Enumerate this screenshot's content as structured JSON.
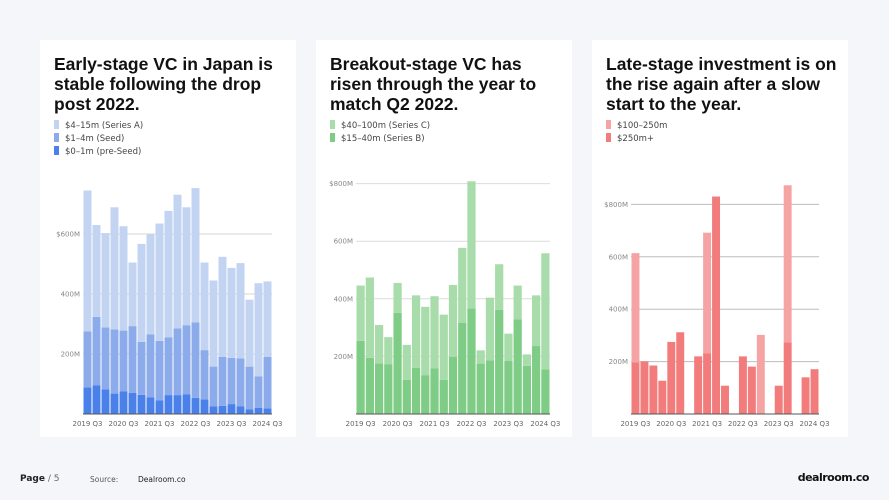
{
  "footer": {
    "page_label": "Page",
    "page_number": "/ 5",
    "source_label": "Source:",
    "source_value": "Dealroom.co",
    "logo": "dealroom.co"
  },
  "cards": [
    {
      "title": "Early-stage VC in Japan is stable following the drop post 2022.",
      "legend": [
        "$4–15m (Series A)",
        "$1–4m (Seed)",
        "$0–1m (pre-Seed)"
      ]
    },
    {
      "title": "Breakout-stage VC has risen through the year to match Q2 2022.",
      "legend": [
        "$40–100m (Series C)",
        "$15–40m (Series B)"
      ]
    },
    {
      "title": "Late-stage investment is on the rise again after a slow start to the year.",
      "legend": [
        "$100–250m",
        "$250m+"
      ]
    }
  ],
  "chart_data": [
    {
      "type": "bar",
      "stacked": true,
      "unit": "USD M",
      "categories": [
        "2019 Q3",
        "2019 Q4",
        "2020 Q1",
        "2020 Q2",
        "2020 Q3",
        "2020 Q4",
        "2021 Q1",
        "2021 Q2",
        "2021 Q3",
        "2021 Q4",
        "2022 Q1",
        "2022 Q2",
        "2022 Q3",
        "2022 Q4",
        "2023 Q1",
        "2023 Q2",
        "2023 Q3",
        "2023 Q4",
        "2024 Q1",
        "2024 Q2",
        "2024 Q3"
      ],
      "x_tick_labels": [
        "2019 Q3",
        "2020 Q3",
        "2021 Q3",
        "2022 Q3",
        "2023 Q3",
        "2024 Q3"
      ],
      "y_tick_labels": [
        "200M",
        "400M",
        "$600M"
      ],
      "y_ticks": [
        200,
        400,
        600
      ],
      "ylim": [
        0,
        800
      ],
      "grid": true,
      "series": [
        {
          "name": "$0–1m (pre-Seed)",
          "color": "#4a80ea",
          "values": [
            89,
            95,
            82,
            68,
            75,
            71,
            64,
            55,
            46,
            63,
            63,
            65,
            54,
            49,
            26,
            27,
            33,
            26,
            16,
            21,
            19
          ]
        },
        {
          "name": "$1–4m (Seed)",
          "color": "#8cabea",
          "values": [
            186,
            229,
            207,
            214,
            203,
            222,
            176,
            210,
            198,
            193,
            222,
            231,
            251,
            164,
            132,
            163,
            154,
            159,
            142,
            104,
            171
          ]
        },
        {
          "name": "$4–15m (Series A)",
          "color": "#c3d4f2",
          "values": [
            470,
            306,
            314,
            407,
            348,
            212,
            327,
            334,
            391,
            421,
            446,
            393,
            448,
            292,
            287,
            334,
            300,
            318,
            223,
            311,
            252
          ]
        }
      ]
    },
    {
      "type": "bar",
      "stacked": true,
      "unit": "USD M",
      "categories": [
        "2019 Q3",
        "2019 Q4",
        "2020 Q1",
        "2020 Q2",
        "2020 Q3",
        "2020 Q4",
        "2021 Q1",
        "2021 Q2",
        "2021 Q3",
        "2021 Q4",
        "2022 Q1",
        "2022 Q2",
        "2022 Q3",
        "2022 Q4",
        "2023 Q1",
        "2023 Q2",
        "2023 Q3",
        "2023 Q4",
        "2024 Q1",
        "2024 Q2",
        "2024 Q3"
      ],
      "x_tick_labels": [
        "2019 Q3",
        "2020 Q3",
        "2021 Q3",
        "2022 Q3",
        "2023 Q3",
        "2024 Q3"
      ],
      "y_tick_labels": [
        "200M",
        "400M",
        "600M",
        "$800M"
      ],
      "y_ticks": [
        200,
        400,
        600,
        800
      ],
      "ylim": [
        0,
        850
      ],
      "grid": true,
      "series": [
        {
          "name": "$15–40m (Series B)",
          "color": "#7fcc87",
          "values": [
            254,
            195,
            176,
            173,
            351,
            119,
            160,
            135,
            159,
            119,
            199,
            316,
            366,
            175,
            186,
            362,
            184,
            329,
            167,
            236,
            155
          ]
        },
        {
          "name": "$40–100m (Series C)",
          "color": "#a9dcab",
          "values": [
            192,
            279,
            133,
            94,
            104,
            121,
            252,
            237,
            250,
            226,
            249,
            261,
            442,
            46,
            218,
            158,
            95,
            117,
            40,
            176,
            403
          ]
        }
      ]
    },
    {
      "type": "bar",
      "stacked": true,
      "unit": "USD M",
      "categories": [
        "2019 Q3",
        "2019 Q4",
        "2020 Q1",
        "2020 Q2",
        "2020 Q3",
        "2020 Q4",
        "2021 Q1",
        "2021 Q2",
        "2021 Q3",
        "2021 Q4",
        "2022 Q1",
        "2022 Q2",
        "2022 Q3",
        "2022 Q4",
        "2023 Q1",
        "2023 Q2",
        "2023 Q3",
        "2023 Q4",
        "2024 Q1",
        "2024 Q2",
        "2024 Q3"
      ],
      "x_tick_labels": [
        "2019 Q3",
        "2020 Q3",
        "2021 Q3",
        "2022 Q3",
        "2023 Q3",
        "2024 Q3"
      ],
      "y_tick_labels": [
        "200M",
        "400M",
        "600M",
        "$800M"
      ],
      "y_ticks": [
        200,
        400,
        600,
        800
      ],
      "ylim": [
        0,
        900
      ],
      "grid": true,
      "series": [
        {
          "name": "$250m+",
          "color": "#f27c7c",
          "values": [
            197,
            201,
            185,
            127,
            275,
            312,
            0,
            220,
            231,
            830,
            108,
            0,
            220,
            181,
            0,
            0,
            108,
            274,
            0,
            140,
            171
          ]
        },
        {
          "name": "$100–250m",
          "color": "#f6a3a3",
          "values": [
            417,
            0,
            0,
            0,
            0,
            0,
            0,
            0,
            461,
            0,
            0,
            0,
            0,
            0,
            302,
            0,
            0,
            599,
            0,
            0,
            0
          ]
        }
      ]
    }
  ]
}
